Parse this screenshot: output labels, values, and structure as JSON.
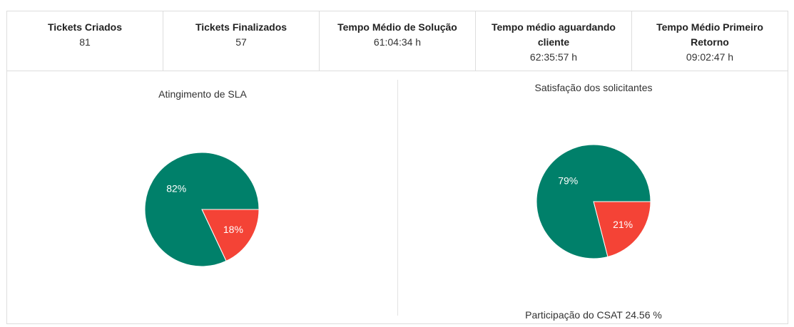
{
  "stats": [
    {
      "label": "Tickets Criados",
      "value": "81"
    },
    {
      "label": "Tickets Finalizados",
      "value": "57"
    },
    {
      "label": "Tempo Médio de Solução",
      "value": "61:04:34 h"
    },
    {
      "label": "Tempo médio aguardando cliente",
      "value": "62:35:57 h"
    },
    {
      "label": "Tempo Médio Primeiro Retorno",
      "value": "09:02:47 h"
    }
  ],
  "colors": {
    "green": "#00806a",
    "red": "#f44336",
    "border": "#dddddd"
  },
  "chart_data": [
    {
      "type": "pie",
      "title": "Atingimento de SLA",
      "slices": [
        {
          "label": "82%",
          "value": 82,
          "color": "#00806a"
        },
        {
          "label": "18%",
          "value": 18,
          "color": "#f44336"
        }
      ]
    },
    {
      "type": "pie",
      "title": "Satisfação dos solicitantes",
      "slices": [
        {
          "label": "79%",
          "value": 79,
          "color": "#00806a"
        },
        {
          "label": "21%",
          "value": 21,
          "color": "#f44336"
        }
      ],
      "note": "Participação do CSAT 24.56 %"
    }
  ]
}
